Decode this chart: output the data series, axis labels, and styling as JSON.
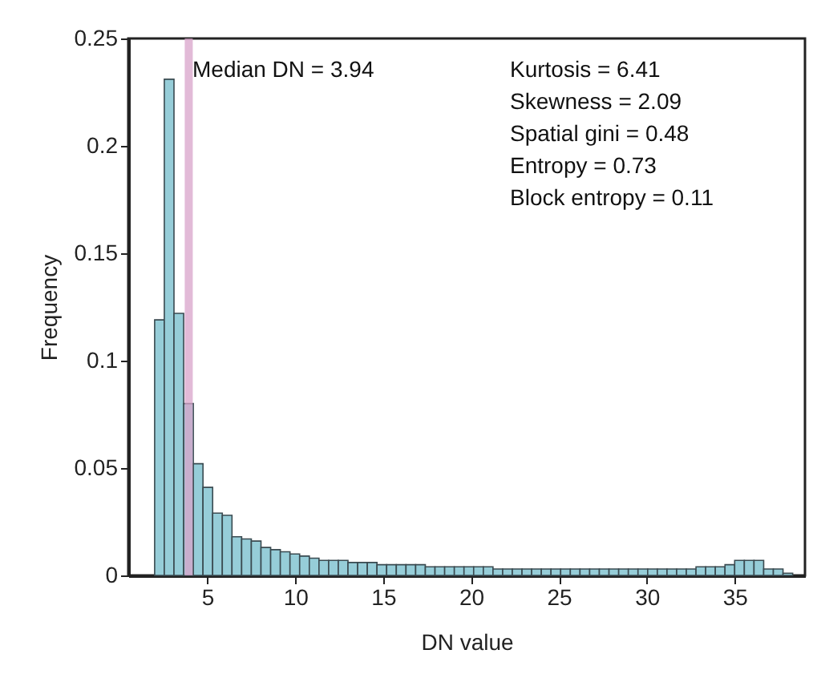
{
  "chart_data": {
    "type": "histogram",
    "xlabel": "DN value",
    "ylabel": "Frequency",
    "bins": [
      2.0,
      2.55,
      3.1,
      3.65,
      4.2,
      4.75,
      5.3,
      5.85,
      6.4,
      6.95,
      7.5,
      8.05,
      8.6,
      9.15,
      9.7,
      10.25,
      10.8,
      11.35,
      11.9,
      12.45,
      13.0,
      13.55,
      14.1,
      14.65,
      15.2,
      15.75,
      16.3,
      16.85,
      17.4,
      17.95,
      18.5,
      19.05,
      19.6,
      20.15,
      20.7,
      21.25,
      21.8,
      22.35,
      22.9,
      23.45,
      24.0,
      24.55,
      25.1,
      25.65,
      26.2,
      26.75,
      27.3,
      27.85,
      28.4,
      28.95,
      29.5,
      30.05,
      30.6,
      31.15,
      31.7,
      32.25,
      32.8,
      33.35,
      33.9,
      34.45,
      35.0,
      35.55,
      36.1,
      36.65,
      37.2,
      37.75,
      38.3
    ],
    "values": [
      0.119,
      0.231,
      0.122,
      0.08,
      0.052,
      0.041,
      0.029,
      0.028,
      0.018,
      0.017,
      0.016,
      0.013,
      0.012,
      0.011,
      0.01,
      0.009,
      0.008,
      0.007,
      0.007,
      0.007,
      0.006,
      0.006,
      0.006,
      0.005,
      0.005,
      0.005,
      0.005,
      0.005,
      0.004,
      0.004,
      0.004,
      0.004,
      0.004,
      0.004,
      0.004,
      0.003,
      0.003,
      0.003,
      0.003,
      0.003,
      0.003,
      0.003,
      0.003,
      0.003,
      0.003,
      0.003,
      0.003,
      0.003,
      0.003,
      0.003,
      0.003,
      0.003,
      0.003,
      0.003,
      0.003,
      0.003,
      0.004,
      0.004,
      0.004,
      0.005,
      0.007,
      0.007,
      0.007,
      0.003,
      0.003,
      0.001
    ],
    "color": "#96cdd8",
    "xlim": [
      0.5,
      39
    ],
    "xticks": [
      5,
      10,
      15,
      20,
      25,
      30,
      35
    ],
    "ylim": [
      0,
      0.25
    ],
    "yticks": [
      0,
      0.05,
      0.1,
      0.15,
      0.2,
      0.25
    ],
    "ref_lines": [
      {
        "axis": "x",
        "value": 3.94,
        "label": null,
        "color": "#d8a3c9"
      }
    ],
    "annotations": [
      "Median DN = 3.94",
      "Kurtosis = 6.41",
      "Skewness = 2.09",
      "Spatial gini = 0.48",
      "Entropy = 0.73",
      "Block entropy = 0.11"
    ],
    "grid": false
  }
}
